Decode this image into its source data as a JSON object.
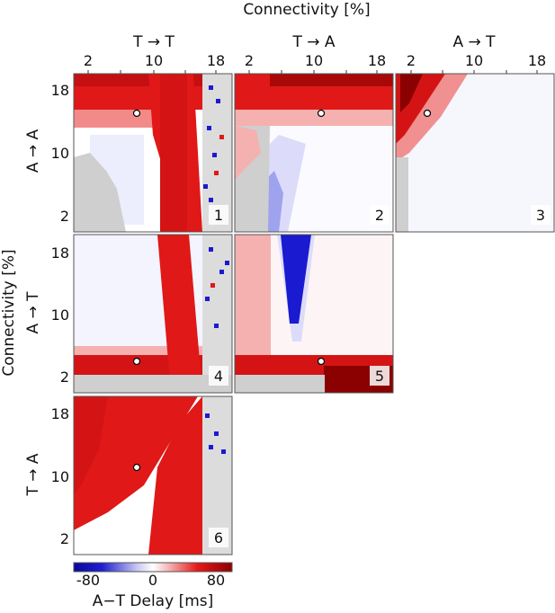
{
  "figure": {
    "top_title": "Connectivity [%]",
    "left_title": "Connectivity [%]",
    "column_labels": [
      "T → T",
      "T → A",
      "A → T"
    ],
    "row_labels": [
      "A → A",
      "A → T",
      "T → A"
    ],
    "x_ticks": [
      "2",
      "10",
      "18"
    ],
    "y_ticks": [
      "18",
      "10",
      "2"
    ],
    "colorbar": {
      "label": "A−T Delay [ms]",
      "ticks": [
        "-80",
        "0",
        "80"
      ],
      "colors": [
        "#08089a",
        "#ffffff",
        "#8b0000"
      ]
    }
  },
  "chart_data": [
    {
      "type": "heatmap",
      "panel": "1",
      "xlabel": "T → T",
      "ylabel": "A → A",
      "x_range": [
        0,
        20
      ],
      "y_range": [
        0,
        20
      ],
      "marker": {
        "x": 8,
        "y": 15
      },
      "missing": "gray"
    },
    {
      "type": "heatmap",
      "panel": "2",
      "xlabel": "T → A",
      "ylabel": "A → A",
      "x_range": [
        0,
        20
      ],
      "y_range": [
        0,
        20
      ],
      "marker": {
        "x": 11,
        "y": 15
      },
      "missing": "gray"
    },
    {
      "type": "heatmap",
      "panel": "3",
      "xlabel": "A → T",
      "ylabel": "A → A",
      "x_range": [
        0,
        20
      ],
      "y_range": [
        0,
        20
      ],
      "marker": {
        "x": 4,
        "y": 15
      },
      "missing": "gray"
    },
    {
      "type": "heatmap",
      "panel": "4",
      "xlabel": "T → T",
      "ylabel": "A → T",
      "x_range": [
        0,
        20
      ],
      "y_range": [
        0,
        20
      ],
      "marker": {
        "x": 8,
        "y": 4
      },
      "missing": "gray"
    },
    {
      "type": "heatmap",
      "panel": "5",
      "xlabel": "T → A",
      "ylabel": "A → T",
      "x_range": [
        0,
        20
      ],
      "y_range": [
        0,
        20
      ],
      "marker": {
        "x": 11,
        "y": 4
      },
      "missing": "gray"
    },
    {
      "type": "heatmap",
      "panel": "6",
      "xlabel": "T → T",
      "ylabel": "T → A",
      "x_range": [
        0,
        20
      ],
      "y_range": [
        0,
        20
      ],
      "marker": {
        "x": 8,
        "y": 12
      },
      "missing": "gray"
    }
  ]
}
